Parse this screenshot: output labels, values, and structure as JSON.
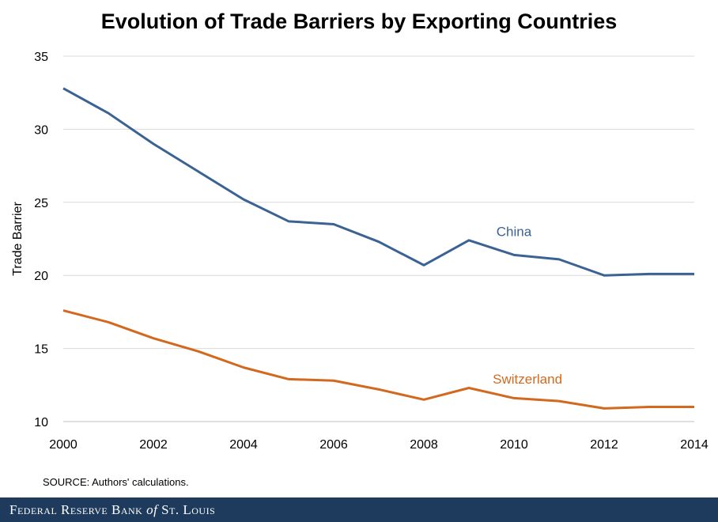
{
  "title": "Evolution of Trade Barriers by Exporting Countries",
  "source": "SOURCE: Authors' calculations.",
  "footer": {
    "part1": "Federal Reserve Bank",
    "part2": "of",
    "part3": "St. Louis"
  },
  "chart_data": {
    "type": "line",
    "title": "Evolution of Trade Barriers by Exporting Countries",
    "xlabel": "",
    "ylabel": "Trade Barrier",
    "xlim": [
      2000,
      2014
    ],
    "ylim": [
      10,
      35
    ],
    "x_ticks": [
      2000,
      2002,
      2004,
      2006,
      2008,
      2010,
      2012,
      2014
    ],
    "y_ticks": [
      10,
      15,
      20,
      25,
      30,
      35
    ],
    "grid": true,
    "x": [
      2000,
      2001,
      2002,
      2003,
      2004,
      2005,
      2006,
      2007,
      2008,
      2009,
      2010,
      2011,
      2012,
      2013,
      2014
    ],
    "series": [
      {
        "name": "China",
        "color": "#3a6293",
        "values": [
          32.8,
          31.1,
          29.0,
          27.1,
          25.2,
          23.7,
          23.5,
          22.3,
          20.7,
          22.4,
          21.4,
          21.1,
          20.0,
          20.1,
          20.1
        ]
      },
      {
        "name": "Switzerland",
        "color": "#d2691e",
        "values": [
          17.6,
          16.8,
          15.7,
          14.8,
          13.7,
          12.9,
          12.8,
          12.2,
          11.5,
          12.3,
          11.6,
          11.4,
          10.9,
          11.0,
          11.0
        ]
      }
    ]
  }
}
